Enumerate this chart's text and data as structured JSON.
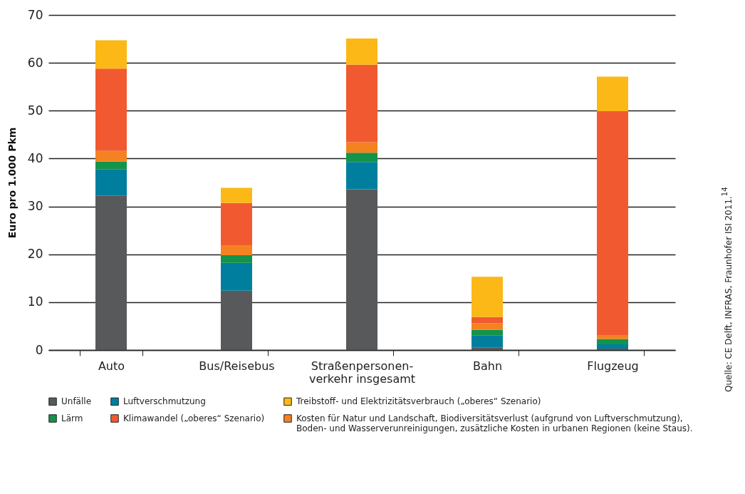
{
  "chart_data": {
    "type": "bar",
    "stacked": true,
    "ylabel": "Euro pro 1.000 Pkm",
    "categories": [
      "Auto",
      "Bus/Reisebus",
      "Straßenpersonen-\nverkehr insgesamt",
      "Bahn",
      "Flugzeug"
    ],
    "series": [
      {
        "name": "Unfälle",
        "color": "#58595b",
        "values": [
          32.3,
          12.4,
          33.6,
          0.5,
          0.3
        ]
      },
      {
        "name": "Luftverschmutzung",
        "color": "#007e9e",
        "values": [
          5.4,
          5.8,
          5.7,
          2.6,
          0.9
        ]
      },
      {
        "name": "Lärm",
        "color": "#14934a",
        "values": [
          1.7,
          1.6,
          1.9,
          1.1,
          1.1
        ]
      },
      {
        "name": "Kosten für Natur und Landschaft, Biodiversitätsverlust (aufgrund von Luftverschmutzung),\nBoden- und Wasserverunreinigungen, zusätzliche Kosten in urbanen Regionen (keine Staus).",
        "color": "#f58220",
        "values": [
          2.2,
          2.0,
          2.2,
          1.4,
          0.7
        ]
      },
      {
        "name": "Klimawandel („oberes“ Szenario)",
        "color": "#f15a30",
        "values": [
          17.2,
          8.9,
          16.2,
          1.3,
          46.9
        ]
      },
      {
        "name": "Treibstoff- und Elektrizitätsverbrauch („oberes“ Szenario)",
        "color": "#fbb817",
        "values": [
          5.9,
          3.2,
          5.5,
          8.4,
          7.2
        ]
      }
    ],
    "ylim": [
      0,
      70
    ],
    "yticks": [
      0,
      10,
      20,
      30,
      40,
      50,
      60,
      70
    ],
    "grid": "y",
    "legend": "bottom",
    "annotations": [
      "Quelle: CE Delft, INFRAS, Fraunhofer ISI 2011.$^{14}$"
    ]
  }
}
